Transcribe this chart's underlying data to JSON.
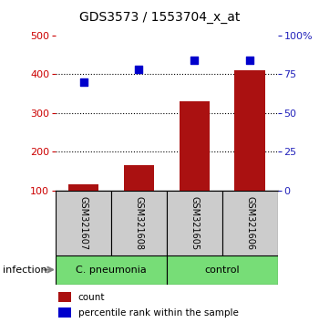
{
  "title": "GDS3573 / 1553704_x_at",
  "samples": [
    "GSM321607",
    "GSM321608",
    "GSM321605",
    "GSM321606"
  ],
  "counts": [
    115,
    165,
    330,
    410
  ],
  "percentiles": [
    70,
    78,
    84,
    84
  ],
  "bar_color": "#aa1111",
  "dot_color": "#0000cc",
  "left_axis_color": "#cc0000",
  "right_axis_color": "#2222bb",
  "ylim_left": [
    100,
    500
  ],
  "ylim_right": [
    0,
    100
  ],
  "left_ticks": [
    100,
    200,
    300,
    400,
    500
  ],
  "right_ticks": [
    0,
    25,
    50,
    75,
    100
  ],
  "right_tick_labels": [
    "0",
    "25",
    "50",
    "75",
    "100%"
  ],
  "grid_lines": [
    200,
    300,
    400
  ],
  "sample_box_color": "#cccccc",
  "group1_color": "#77dd77",
  "group2_color": "#77dd77",
  "background_color": "#ffffff",
  "title_fontsize": 10,
  "tick_fontsize": 8,
  "sample_fontsize": 7,
  "legend_fontsize": 7.5,
  "group_fontsize": 8,
  "infection_fontsize": 8
}
